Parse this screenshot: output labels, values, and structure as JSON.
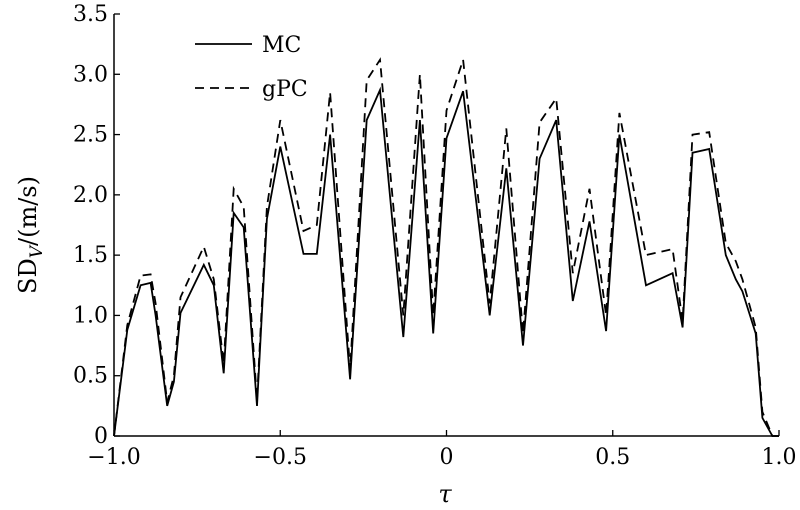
{
  "chart_data": {
    "type": "line",
    "title": "",
    "xlabel": "τ",
    "ylabel": {
      "base": "SD",
      "subscript": "V",
      "suffix": "/(m/s)"
    },
    "xlim": [
      -1.0,
      1.0
    ],
    "ylim": [
      0,
      3.5
    ],
    "xticks": [
      -1.0,
      -0.5,
      0,
      0.5,
      1.0
    ],
    "xtick_labels": [
      "−1.0",
      "−0.5",
      "0",
      "0.5",
      "1.0"
    ],
    "yticks": [
      0,
      0.5,
      1.0,
      1.5,
      2.0,
      2.5,
      3.0,
      3.5
    ],
    "ytick_labels": [
      "0",
      "0.5",
      "1.0",
      "1.5",
      "2.0",
      "2.5",
      "3.0",
      "3.5"
    ],
    "grid": false,
    "legend": "top-left",
    "series": [
      {
        "name": "MC",
        "style": "solid",
        "color": "#000000",
        "x": [
          -1.0,
          -0.96,
          -0.92,
          -0.89,
          -0.875,
          -0.84,
          -0.82,
          -0.8,
          -0.73,
          -0.7,
          -0.67,
          -0.64,
          -0.61,
          -0.57,
          -0.54,
          -0.5,
          -0.43,
          -0.39,
          -0.35,
          -0.29,
          -0.24,
          -0.2,
          -0.13,
          -0.08,
          -0.04,
          0.0,
          0.05,
          0.13,
          0.18,
          0.23,
          0.28,
          0.33,
          0.38,
          0.43,
          0.48,
          0.52,
          0.6,
          0.68,
          0.71,
          0.74,
          0.79,
          0.84,
          0.87,
          0.89,
          0.93,
          0.95,
          0.98,
          1.0
        ],
        "y": [
          0.0,
          0.88,
          1.25,
          1.27,
          1.0,
          0.25,
          0.45,
          1.02,
          1.42,
          1.25,
          0.52,
          1.85,
          1.73,
          0.25,
          1.8,
          2.4,
          1.51,
          1.51,
          2.5,
          0.47,
          2.62,
          2.87,
          0.82,
          2.62,
          0.85,
          2.47,
          2.86,
          1.0,
          2.22,
          0.75,
          2.3,
          2.62,
          1.12,
          1.78,
          0.87,
          2.5,
          1.25,
          1.35,
          0.9,
          2.35,
          2.38,
          1.5,
          1.3,
          1.2,
          0.85,
          0.15,
          0.0,
          0.0
        ]
      },
      {
        "name": "gPC",
        "style": "dashed",
        "color": "#000000",
        "x": [
          -1.0,
          -0.96,
          -0.92,
          -0.89,
          -0.875,
          -0.84,
          -0.82,
          -0.8,
          -0.73,
          -0.7,
          -0.67,
          -0.64,
          -0.61,
          -0.57,
          -0.54,
          -0.5,
          -0.43,
          -0.39,
          -0.35,
          -0.29,
          -0.24,
          -0.2,
          -0.13,
          -0.08,
          -0.04,
          0.0,
          0.05,
          0.13,
          0.18,
          0.23,
          0.28,
          0.33,
          0.38,
          0.43,
          0.48,
          0.52,
          0.6,
          0.68,
          0.71,
          0.74,
          0.79,
          0.84,
          0.87,
          0.89,
          0.93,
          0.95,
          0.98,
          1.0
        ],
        "y": [
          0.0,
          0.92,
          1.33,
          1.34,
          1.1,
          0.28,
          0.5,
          1.15,
          1.57,
          1.3,
          0.6,
          2.05,
          1.9,
          0.3,
          1.9,
          2.62,
          1.7,
          1.75,
          2.85,
          0.55,
          2.95,
          3.12,
          1.0,
          3.0,
          1.0,
          2.7,
          3.12,
          1.1,
          2.55,
          0.85,
          2.6,
          2.8,
          1.35,
          2.05,
          1.0,
          2.68,
          1.5,
          1.55,
          0.95,
          2.5,
          2.52,
          1.6,
          1.45,
          1.3,
          0.9,
          0.2,
          0.0,
          0.0
        ]
      }
    ]
  }
}
